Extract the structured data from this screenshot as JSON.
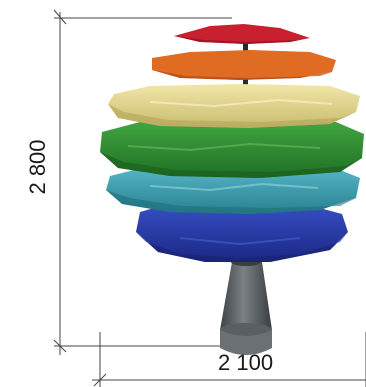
{
  "dimensions": {
    "height_label": "2 800",
    "width_label": "2 100"
  },
  "colors": {
    "red": "#c8202f",
    "orange": "#e06b22",
    "yellow": "#e6d88c",
    "green": "#2e8f2e",
    "teal": "#3a9fb0",
    "blue": "#2438a8",
    "trunk": "#5a5f63",
    "pole": "#2a2a2a",
    "dimension_line": "#444444"
  }
}
